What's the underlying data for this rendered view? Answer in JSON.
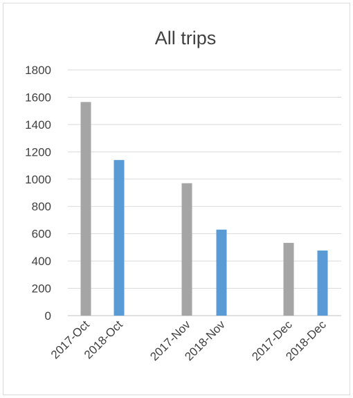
{
  "chart_data": {
    "type": "bar",
    "title": "All trips",
    "xlabel": "",
    "ylabel": "",
    "categories": [
      "2017-Oct",
      "2018-Oct",
      "2017-Nov",
      "2018-Nov",
      "2017-Dec",
      "2018-Dec"
    ],
    "values": [
      1565,
      1140,
      970,
      630,
      533,
      477
    ],
    "bar_colors": [
      "#a5a5a5",
      "#5b9bd5",
      "#a5a5a5",
      "#5b9bd5",
      "#a5a5a5",
      "#5b9bd5"
    ],
    "ylim": [
      0,
      1800
    ],
    "yticks": [
      0,
      200,
      400,
      600,
      800,
      1000,
      1200,
      1400,
      1600,
      1800
    ],
    "grid": true,
    "legend": "none"
  }
}
